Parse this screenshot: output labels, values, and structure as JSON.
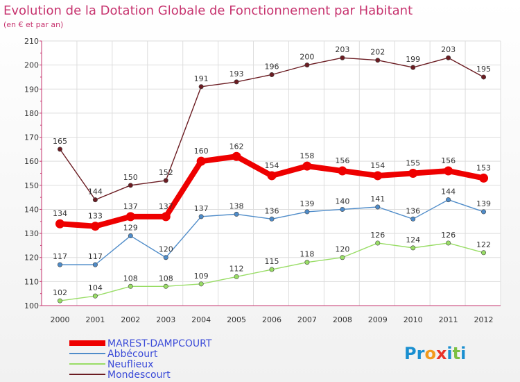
{
  "chart_data": {
    "type": "line",
    "title": "Evolution de la Dotation Globale de Fonctionnement par Habitant",
    "subtitle": "(en € et par an)",
    "categories": [
      "2000",
      "2001",
      "2002",
      "2003",
      "2004",
      "2005",
      "2006",
      "2007",
      "2008",
      "2009",
      "2010",
      "2011",
      "2012"
    ],
    "ylim": [
      100,
      210
    ],
    "yticks": [
      100,
      110,
      120,
      130,
      140,
      150,
      160,
      170,
      180,
      190,
      200,
      210
    ],
    "grid": true,
    "legend_position": "bottom-left",
    "series": [
      {
        "name": "MAREST-DAMPCOURT",
        "color": "#ee0000",
        "values": [
          134,
          133,
          137,
          137,
          160,
          162,
          154,
          158,
          156,
          154,
          155,
          156,
          153
        ]
      },
      {
        "name": "Abbécourt",
        "color": "#4f8cc9",
        "values": [
          117,
          117,
          129,
          120,
          137,
          138,
          136,
          139,
          140,
          141,
          136,
          144,
          139
        ]
      },
      {
        "name": "Neuflieux",
        "color": "#99dd66",
        "values": [
          102,
          104,
          108,
          108,
          109,
          112,
          115,
          118,
          120,
          126,
          124,
          126,
          122
        ]
      },
      {
        "name": "Mondescourt",
        "color": "#6b1c22",
        "values": [
          165,
          144,
          150,
          152,
          191,
          193,
          196,
          200,
          203,
          202,
          199,
          203,
          195
        ]
      }
    ]
  },
  "logo": {
    "text": "Proxiti",
    "letters": [
      "P",
      "r",
      "o",
      "x",
      "i",
      "t",
      "i"
    ],
    "colors": [
      "#1a8fd0",
      "#1a8fd0",
      "#f39a1c",
      "#e8332a",
      "#1a8fd0",
      "#7cc043",
      "#1a8fd0"
    ]
  }
}
